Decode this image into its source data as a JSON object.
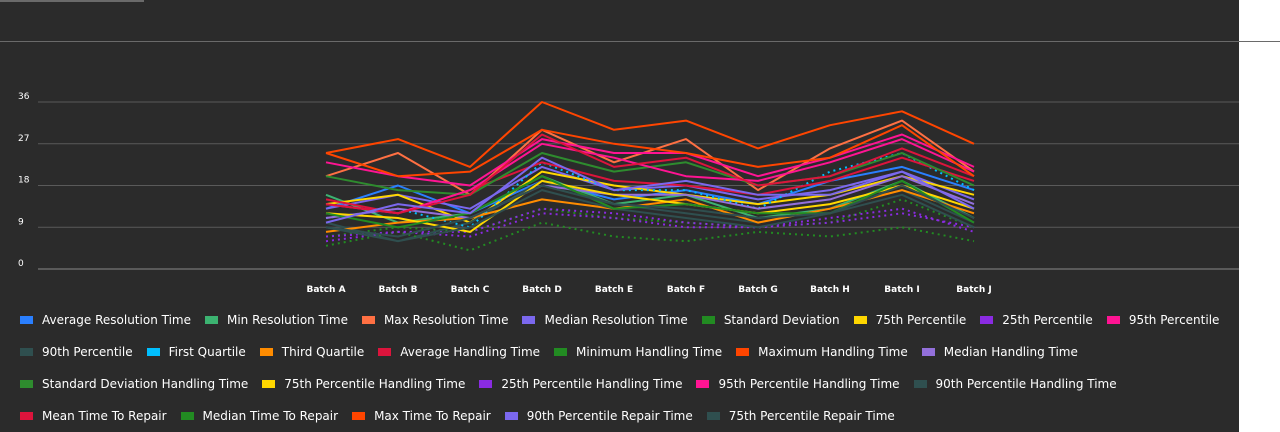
{
  "chart_data": {
    "type": "line",
    "categories": [
      "Batch A",
      "Batch B",
      "Batch C",
      "Batch D",
      "Batch E",
      "Batch F",
      "Batch G",
      "Batch H",
      "Batch I",
      "Batch J"
    ],
    "ylim": [
      0,
      40
    ],
    "yticks": [
      0,
      9,
      18,
      27,
      36
    ],
    "grid": true,
    "legend_position": "bottom",
    "series": [
      {
        "name": "Average Resolution Time",
        "color": "#2a7fff",
        "dash": false,
        "values": [
          13,
          18,
          12,
          19,
          15,
          17,
          14,
          19,
          22,
          17
        ]
      },
      {
        "name": "Min Resolution Time",
        "color": "#3cb371",
        "dash": false,
        "values": [
          16,
          10,
          12,
          20,
          14,
          16,
          11,
          13,
          19,
          11
        ]
      },
      {
        "name": "Max Resolution Time",
        "color": "#ff7043",
        "dash": false,
        "values": [
          20,
          25,
          16,
          30,
          23,
          28,
          17,
          26,
          32,
          21
        ]
      },
      {
        "name": "Median Resolution Time",
        "color": "#7b68ee",
        "dash": false,
        "values": [
          13,
          16,
          13,
          22,
          17,
          18,
          15,
          17,
          21,
          15
        ]
      },
      {
        "name": "Standard Deviation",
        "color": "#228b22",
        "dash": true,
        "values": [
          7,
          9,
          8,
          13,
          11,
          10,
          9,
          10,
          15,
          9
        ]
      },
      {
        "name": "75th Percentile",
        "color": "#ffd700",
        "dash": false,
        "values": [
          14,
          16,
          10,
          21,
          18,
          16,
          14,
          16,
          20,
          16
        ]
      },
      {
        "name": "25th Percentile",
        "color": "#8a2be2",
        "dash": true,
        "values": [
          7,
          8,
          8,
          13,
          12,
          10,
          9,
          11,
          13,
          8
        ]
      },
      {
        "name": "95th Percentile",
        "color": "#ff1493",
        "dash": false,
        "values": [
          23,
          20,
          18,
          28,
          25,
          25,
          20,
          24,
          29,
          22
        ]
      },
      {
        "name": "90th Percentile",
        "color": "#2f4f4f",
        "dash": false,
        "values": [
          10,
          6,
          10,
          19,
          14,
          12,
          10,
          13,
          17,
          10
        ]
      },
      {
        "name": "First Quartile",
        "color": "#00bfff",
        "dash": true,
        "values": [
          11,
          13,
          9,
          23,
          17,
          17,
          13,
          21,
          25,
          17
        ]
      },
      {
        "name": "Third Quartile",
        "color": "#ff8c00",
        "dash": false,
        "values": [
          8,
          10,
          11,
          15,
          13,
          15,
          10,
          13,
          17,
          12
        ]
      },
      {
        "name": "Average Handling Time",
        "color": "#dc143c",
        "dash": false,
        "values": [
          15,
          12,
          17,
          23,
          19,
          18,
          16,
          19,
          24,
          19
        ]
      },
      {
        "name": "Minimum Handling Time",
        "color": "#228b22",
        "dash": true,
        "values": [
          5,
          8,
          4,
          10,
          7,
          6,
          8,
          7,
          9,
          6
        ]
      },
      {
        "name": "Maximum Handling Time",
        "color": "#ff4500",
        "dash": false,
        "values": [
          25,
          28,
          22,
          36,
          30,
          32,
          26,
          31,
          34,
          27
        ]
      },
      {
        "name": "Median Handling Time",
        "color": "#9370db",
        "dash": false,
        "values": [
          11,
          13,
          11,
          18,
          16,
          16,
          13,
          15,
          20,
          14
        ]
      },
      {
        "name": "Standard Deviation Handling Time",
        "color": "#2e8b2e",
        "dash": false,
        "values": [
          20,
          17,
          16,
          25,
          21,
          23,
          18,
          20,
          25,
          18
        ]
      },
      {
        "name": "75th Percentile Handling Time",
        "color": "#ffd700",
        "dash": false,
        "values": [
          12,
          11,
          8,
          19,
          16,
          14,
          12,
          14,
          18,
          13
        ]
      },
      {
        "name": "25th Percentile Handling Time",
        "color": "#8a2be2",
        "dash": true,
        "values": [
          6,
          8,
          7,
          12,
          11,
          9,
          9,
          10,
          12,
          9
        ]
      },
      {
        "name": "95th Percentile Handling Time",
        "color": "#ff1493",
        "dash": false,
        "values": [
          14,
          12,
          17,
          27,
          24,
          20,
          19,
          23,
          28,
          21
        ]
      },
      {
        "name": "90th Percentile Handling Time",
        "color": "#2f4f4f",
        "dash": false,
        "values": [
          9,
          6,
          9,
          17,
          13,
          11,
          9,
          12,
          16,
          9
        ]
      },
      {
        "name": "Mean Time To Repair",
        "color": "#dc143c",
        "dash": false,
        "values": [
          14,
          12,
          16,
          29,
          22,
          24,
          18,
          20,
          26,
          20
        ]
      },
      {
        "name": "Median Time To Repair",
        "color": "#228b22",
        "dash": false,
        "values": [
          12,
          9,
          12,
          20,
          13,
          14,
          12,
          12,
          19,
          10
        ]
      },
      {
        "name": "Max Time To Repair",
        "color": "#ff4500",
        "dash": false,
        "values": [
          25,
          20,
          21,
          30,
          27,
          25,
          22,
          24,
          31,
          20
        ]
      },
      {
        "name": "90th Percentile Repair Time",
        "color": "#7b68ee",
        "dash": false,
        "values": [
          10,
          14,
          12,
          24,
          17,
          19,
          16,
          16,
          21,
          13
        ]
      },
      {
        "name": "75th Percentile Repair Time",
        "color": "#2f4f4f",
        "dash": false,
        "values": [
          9,
          7,
          11,
          18,
          14,
          13,
          11,
          12,
          18,
          11
        ]
      }
    ]
  }
}
